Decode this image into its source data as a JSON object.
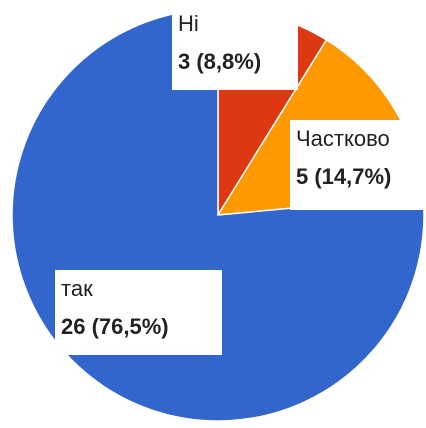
{
  "chart_data": {
    "type": "pie",
    "categories": [
      "Ні",
      "Частково",
      "так"
    ],
    "values": [
      3,
      5,
      26
    ],
    "value_labels": [
      "3 (8,8%)",
      "5 (14,7%)",
      "26 (76,5%)"
    ],
    "colors": [
      "#dc3912",
      "#ff9900",
      "#3366cc"
    ]
  }
}
